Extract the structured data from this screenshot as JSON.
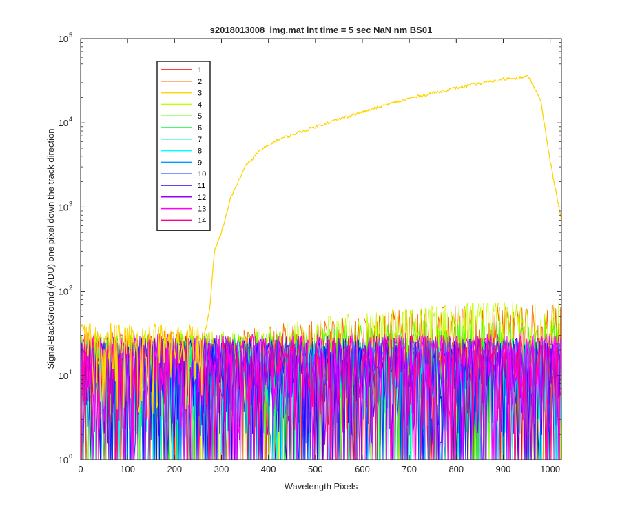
{
  "chart_data": {
    "type": "line",
    "title": "s2018013008_img.mat int time = 5 sec  NaN nm BS01",
    "xlabel": "Wavelength Pixels",
    "ylabel": "Signal-BackGround (ADU) one pixel down the track direction",
    "xlim": [
      0,
      1024
    ],
    "ylim": [
      1,
      100000
    ],
    "yscale": "log",
    "xticks": [
      "0",
      "100",
      "200",
      "300",
      "400",
      "500",
      "600",
      "700",
      "800",
      "900",
      "1000"
    ],
    "xtick_values": [
      0,
      100,
      200,
      300,
      400,
      500,
      600,
      700,
      800,
      900,
      1000
    ],
    "ytick_values": [
      1,
      10,
      100,
      1000,
      10000,
      100000
    ],
    "ytick_exponents": [
      "0",
      "1",
      "2",
      "3",
      "4",
      "5"
    ],
    "ytick_base": "10",
    "grid": false,
    "legend_position": "top-left",
    "series": [
      {
        "name": "1",
        "color": "#ff0000",
        "low": 2,
        "high": 30,
        "bump": 0
      },
      {
        "name": "2",
        "color": "#ff6a00",
        "low": 2,
        "high": 35,
        "bump": 35
      },
      {
        "name": "3",
        "color": "#ffd400",
        "x": [
          0,
          260,
          275,
          285,
          300,
          320,
          350,
          380,
          420,
          500,
          600,
          700,
          800,
          900,
          955,
          980,
          1000,
          1024
        ],
        "y": [
          25,
          25,
          60,
          300,
          500,
          1300,
          3000,
          4600,
          6300,
          9000,
          13500,
          19500,
          26000,
          33000,
          35500,
          18000,
          3500,
          700
        ]
      },
      {
        "name": "4",
        "color": "#c4ff00",
        "low": 3,
        "high": 35,
        "bump": 40
      },
      {
        "name": "5",
        "color": "#55ff00",
        "low": 2,
        "high": 32,
        "bump": 15
      },
      {
        "name": "6",
        "color": "#00ff33",
        "low": 2,
        "high": 28,
        "bump": 0
      },
      {
        "name": "7",
        "color": "#00ff99",
        "low": 1.5,
        "high": 26,
        "bump": 0
      },
      {
        "name": "8",
        "color": "#00ffff",
        "low": 1.5,
        "high": 25,
        "bump": 0
      },
      {
        "name": "9",
        "color": "#0099ff",
        "low": 1.5,
        "high": 26,
        "bump": 0
      },
      {
        "name": "10",
        "color": "#0033ff",
        "low": 1.5,
        "high": 27,
        "bump": 0
      },
      {
        "name": "11",
        "color": "#3300ff",
        "low": 1.5,
        "high": 28,
        "bump": 0
      },
      {
        "name": "12",
        "color": "#9900ff",
        "low": 1.5,
        "high": 30,
        "bump": 0
      },
      {
        "name": "13",
        "color": "#ff00ff",
        "low": 2,
        "high": 32,
        "bump": 0
      },
      {
        "name": "14",
        "color": "#ff0099",
        "low": 2,
        "high": 30,
        "bump": 0
      }
    ]
  }
}
